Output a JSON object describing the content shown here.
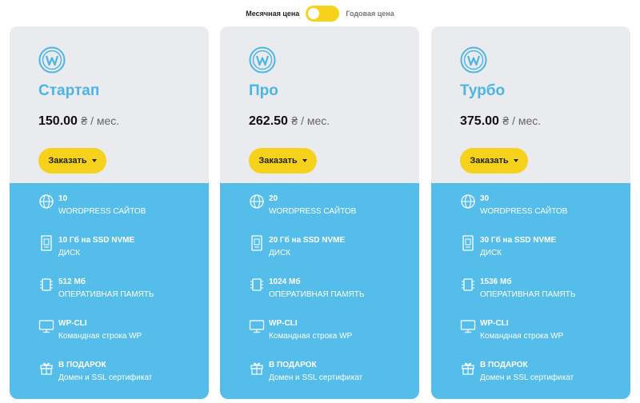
{
  "toggle": {
    "monthly_label": "Месячная цена",
    "yearly_label": "Годовая цена"
  },
  "colors": {
    "accent_yellow": "#f7d21c",
    "plan_title_blue": "#4db5e5",
    "features_bg": "#55bde9",
    "card_bg": "#eaebee"
  },
  "plans": [
    {
      "name": "Стартап",
      "price": "150.00",
      "currency_unit": "₴ / мес.",
      "order_label": "Заказать",
      "features": [
        {
          "icon": "globe-icon",
          "title": "10",
          "subtitle": "WORDPRESS САЙТОВ"
        },
        {
          "icon": "ssd-disk-icon",
          "title": "10 Гб на SSD NVME",
          "subtitle": "ДИСК"
        },
        {
          "icon": "memory-chip-icon",
          "title": "512 Мб",
          "subtitle": "ОПЕРАТИВНАЯ ПАМЯТЬ"
        },
        {
          "icon": "monitor-icon",
          "title": "WP-CLI",
          "subtitle": "Командная строка WP"
        },
        {
          "icon": "gift-icon",
          "title": "В ПОДАРОК",
          "subtitle": "Домен и SSL сертификат"
        }
      ]
    },
    {
      "name": "Про",
      "price": "262.50",
      "currency_unit": "₴ / мес.",
      "order_label": "Заказать",
      "features": [
        {
          "icon": "globe-icon",
          "title": "20",
          "subtitle": "WORDPRESS САЙТОВ"
        },
        {
          "icon": "ssd-disk-icon",
          "title": "20 Гб на SSD NVME",
          "subtitle": "ДИСК"
        },
        {
          "icon": "memory-chip-icon",
          "title": "1024 Мб",
          "subtitle": "ОПЕРАТИВНАЯ ПАМЯТЬ"
        },
        {
          "icon": "monitor-icon",
          "title": "WP-CLI",
          "subtitle": "Командная строка WP"
        },
        {
          "icon": "gift-icon",
          "title": "В ПОДАРОК",
          "subtitle": "Домен и SSL сертификат"
        }
      ]
    },
    {
      "name": "Турбо",
      "price": "375.00",
      "currency_unit": "₴ / мес.",
      "order_label": "Заказать",
      "features": [
        {
          "icon": "globe-icon",
          "title": "30",
          "subtitle": "WORDPRESS САЙТОВ"
        },
        {
          "icon": "ssd-disk-icon",
          "title": "30 Гб на SSD NVME",
          "subtitle": "ДИСК"
        },
        {
          "icon": "memory-chip-icon",
          "title": "1536 Мб",
          "subtitle": "ОПЕРАТИВНАЯ ПАМЯТЬ"
        },
        {
          "icon": "monitor-icon",
          "title": "WP-CLI",
          "subtitle": "Командная строка WP"
        },
        {
          "icon": "gift-icon",
          "title": "В ПОДАРОК",
          "subtitle": "Домен и SSL сертификат"
        }
      ]
    }
  ]
}
